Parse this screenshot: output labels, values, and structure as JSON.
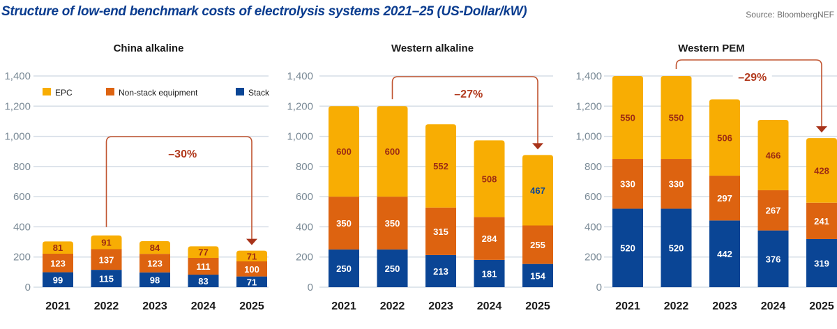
{
  "header": {
    "title": "Structure of low-end benchmark costs of electrolysis systems 2021–25 (US-Dollar/kW)",
    "source": "Source: BloombergNEF"
  },
  "colors": {
    "epc": "#f8ad03",
    "non_stack": "#dd6310",
    "stack": "#0a4595",
    "grid": "#d5dde6",
    "arrow": "#c0532f",
    "label_dark": "#9b2a14",
    "label_white": "#ffffff",
    "label_blue": "#0a4595"
  },
  "chart_data": [
    {
      "type": "bar",
      "stacked": true,
      "title": "China alkaline",
      "categories": [
        "2021",
        "2022",
        "2023",
        "2024",
        "2025"
      ],
      "series": [
        {
          "name": "Stack",
          "values": [
            99,
            115,
            98,
            83,
            71
          ]
        },
        {
          "name": "Non-stack equipment",
          "values": [
            123,
            137,
            123,
            111,
            100
          ]
        },
        {
          "name": "EPC",
          "values": [
            81,
            91,
            84,
            77,
            71
          ]
        }
      ],
      "ylim": [
        0,
        1400
      ],
      "yticks": [
        "0",
        "200",
        "400",
        "600",
        "800",
        "1,000",
        "1,200",
        "1,400"
      ],
      "legend": {
        "position": "top",
        "items": [
          "EPC",
          "Non-stack equipment",
          "Stack"
        ]
      },
      "annotation": {
        "text": "–30%",
        "from": "2022",
        "to": "2025"
      },
      "grid": true
    },
    {
      "type": "bar",
      "stacked": true,
      "title": "Western alkaline",
      "categories": [
        "2021",
        "2022",
        "2023",
        "2024",
        "2025"
      ],
      "series": [
        {
          "name": "Stack",
          "values": [
            250,
            250,
            213,
            181,
            154
          ]
        },
        {
          "name": "Non-stack equipment",
          "values": [
            350,
            350,
            315,
            284,
            255
          ]
        },
        {
          "name": "EPC",
          "values": [
            600,
            600,
            552,
            508,
            467
          ]
        }
      ],
      "ylim": [
        0,
        1400
      ],
      "yticks": [
        "0",
        "200",
        "400",
        "600",
        "800",
        "1,000",
        "1,200",
        "1,400"
      ],
      "annotation": {
        "text": "–27%",
        "from": "2022",
        "to": "2025"
      },
      "grid": true
    },
    {
      "type": "bar",
      "stacked": true,
      "title": "Western PEM",
      "categories": [
        "2021",
        "2022",
        "2023",
        "2024",
        "2025"
      ],
      "series": [
        {
          "name": "Stack",
          "values": [
            520,
            520,
            442,
            376,
            319
          ]
        },
        {
          "name": "Non-stack equipment",
          "values": [
            330,
            330,
            297,
            267,
            241
          ]
        },
        {
          "name": "EPC",
          "values": [
            550,
            550,
            506,
            466,
            428
          ]
        }
      ],
      "ylim": [
        0,
        1400
      ],
      "yticks": [
        "0",
        "200",
        "400",
        "600",
        "800",
        "1,000",
        "1,200",
        "1,400"
      ],
      "annotation": {
        "text": "–29%",
        "from": "2022",
        "to": "2025"
      },
      "grid": true
    }
  ]
}
